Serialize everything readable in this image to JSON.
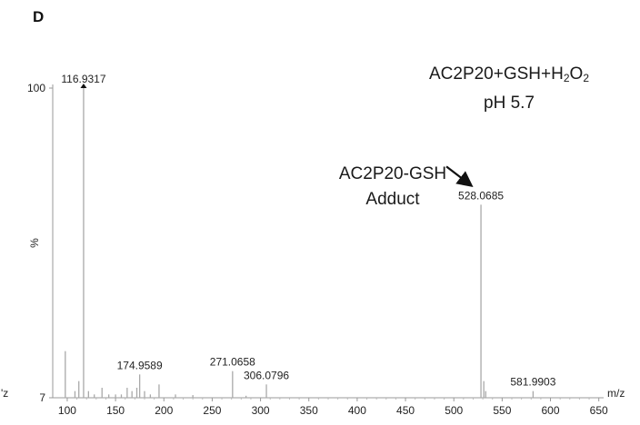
{
  "panel_label": "D",
  "chart_data": {
    "type": "bar",
    "title_line1_base": "AC2P20+GSH+H",
    "title_line1_sub1": "2",
    "title_line1_mid": "O",
    "title_line1_sub2": "2",
    "title_line2": "pH 5.7",
    "xlabel": "m/z",
    "ylabel": "%",
    "left_cut_label": "'z",
    "xlim": [
      85,
      655
    ],
    "ylim": [
      7,
      100
    ],
    "y_ticks": [
      {
        "value": 100,
        "label": "100"
      },
      {
        "value": 7,
        "label": "7"
      }
    ],
    "x_ticks": [
      100,
      150,
      200,
      250,
      300,
      350,
      400,
      450,
      500,
      550,
      600,
      650
    ],
    "annotation": {
      "line1": "AC2P20-GSH",
      "line2": "Adduct",
      "points_to_mz": 528.0685
    },
    "peaks": [
      {
        "mz": 98,
        "intensity": 21
      },
      {
        "mz": 108,
        "intensity": 9
      },
      {
        "mz": 112,
        "intensity": 12
      },
      {
        "mz": 116.9317,
        "intensity": 100,
        "label": "116.9317"
      },
      {
        "mz": 122,
        "intensity": 9
      },
      {
        "mz": 128,
        "intensity": 8
      },
      {
        "mz": 136,
        "intensity": 10
      },
      {
        "mz": 143,
        "intensity": 8
      },
      {
        "mz": 150,
        "intensity": 8
      },
      {
        "mz": 156,
        "intensity": 8
      },
      {
        "mz": 162,
        "intensity": 10
      },
      {
        "mz": 167,
        "intensity": 9
      },
      {
        "mz": 172,
        "intensity": 10
      },
      {
        "mz": 174.9589,
        "intensity": 14,
        "label": "174.9589"
      },
      {
        "mz": 180,
        "intensity": 9
      },
      {
        "mz": 186,
        "intensity": 8
      },
      {
        "mz": 195,
        "intensity": 11
      },
      {
        "mz": 212,
        "intensity": 8
      },
      {
        "mz": 230,
        "intensity": 7.8
      },
      {
        "mz": 271.0658,
        "intensity": 15,
        "label": "271.0658"
      },
      {
        "mz": 285,
        "intensity": 7.6
      },
      {
        "mz": 306.0796,
        "intensity": 11,
        "label": "306.0796"
      },
      {
        "mz": 528.0685,
        "intensity": 65,
        "label": "528.0685"
      },
      {
        "mz": 531,
        "intensity": 12
      },
      {
        "mz": 533,
        "intensity": 9
      },
      {
        "mz": 581.9903,
        "intensity": 9,
        "label": "581.9903"
      }
    ]
  }
}
